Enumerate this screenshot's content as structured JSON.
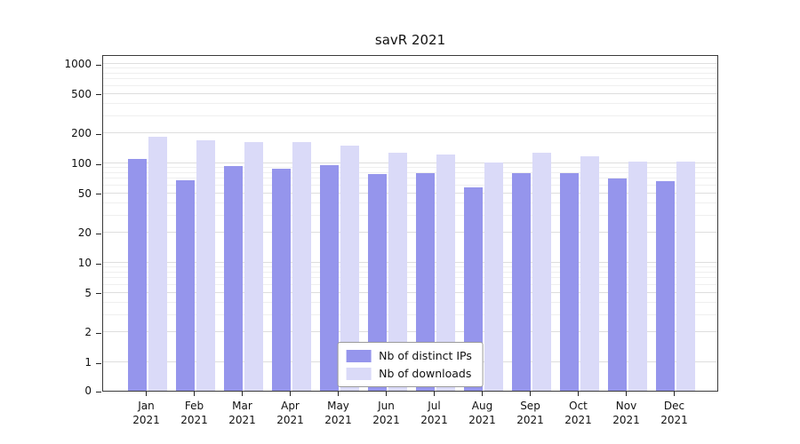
{
  "chart_data": {
    "type": "bar",
    "title": "savR 2021",
    "categories": [
      "Jan",
      "Feb",
      "Mar",
      "Apr",
      "May",
      "Jun",
      "Jul",
      "Aug",
      "Sep",
      "Oct",
      "Nov",
      "Dec"
    ],
    "year_label": "2021",
    "series": [
      {
        "name": "Nb of distinct IPs",
        "color": "#9595ec",
        "values": [
          110,
          67,
          95,
          88,
          96,
          78,
          80,
          58,
          79,
          80,
          70,
          66
        ]
      },
      {
        "name": "Nb of downloads",
        "color": "#dadaf8",
        "values": [
          185,
          170,
          163,
          165,
          152,
          128,
          122,
          103,
          128,
          117,
          105,
          104
        ]
      }
    ],
    "yscale": "symlog",
    "ylim": [
      0,
      1000
    ],
    "yticks": [
      0,
      1,
      2,
      5,
      10,
      20,
      50,
      100,
      200,
      500,
      1000
    ],
    "xlabel": "",
    "ylabel": "",
    "grid": "on",
    "legend_position": "inside-bottom-center"
  },
  "colors": {
    "grid_major": "#dedede",
    "grid_minor": "#efefef",
    "axis": "#3a3a3a",
    "background": "#ffffff"
  }
}
